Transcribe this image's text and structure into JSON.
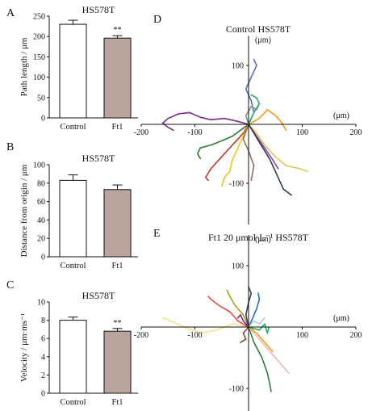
{
  "chart_data": [
    {
      "panel": "A",
      "type": "bar",
      "title": "HS578T",
      "ylabel": "Path length / μm",
      "ylim": [
        0,
        250
      ],
      "yticks": [
        0,
        50,
        100,
        150,
        200,
        250
      ],
      "categories": [
        "Control",
        "Ft1"
      ],
      "values": [
        230,
        196
      ],
      "errors": [
        10,
        6
      ],
      "bar_colors": [
        "#ffffff",
        "#b9a59b"
      ],
      "annotations": [
        "",
        "**"
      ]
    },
    {
      "panel": "B",
      "type": "bar",
      "title": "HS578T",
      "ylabel": "Distance from origin / μm",
      "ylim": [
        0,
        100
      ],
      "yticks": [
        0,
        20,
        40,
        60,
        80,
        100
      ],
      "categories": [
        "Control",
        "Ft1"
      ],
      "values": [
        83,
        73
      ],
      "errors": [
        6,
        5
      ],
      "bar_colors": [
        "#ffffff",
        "#b9a59b"
      ],
      "annotations": [
        "",
        ""
      ]
    },
    {
      "panel": "C",
      "type": "bar",
      "title": "HS578T",
      "ylabel": "Velocity / μm·ms⁻¹",
      "ylim": [
        0,
        10
      ],
      "yticks": [
        0,
        2,
        4,
        6,
        8,
        10
      ],
      "categories": [
        "Control",
        "Ft1"
      ],
      "values": [
        8.0,
        6.8
      ],
      "errors": [
        0.35,
        0.3
      ],
      "bar_colors": [
        "#ffffff",
        "#b9a59b"
      ],
      "annotations": [
        "",
        "**"
      ]
    },
    {
      "panel": "D",
      "type": "line",
      "title": "Control HS578T",
      "unit_label": "(μm)",
      "xlim": [
        -200,
        200
      ],
      "ylim": [
        -170,
        150
      ],
      "xticks": [
        -200,
        -100,
        100,
        200
      ],
      "yticks": [
        100,
        -100
      ],
      "series": [
        {
          "color": "#7b2a8a",
          "x": [
            0,
            -20,
            -45,
            -70,
            -90,
            -110,
            -130,
            -150,
            -160,
            -150,
            -140
          ],
          "y": [
            0,
            5,
            10,
            8,
            12,
            20,
            18,
            10,
            2,
            -5,
            -10
          ]
        },
        {
          "color": "#c0392b",
          "x": [
            0,
            -10,
            -25,
            -40,
            -55,
            -70,
            -80,
            -75
          ],
          "y": [
            0,
            -15,
            -30,
            -45,
            -60,
            -75,
            -90,
            -95
          ]
        },
        {
          "color": "#2e7d32",
          "x": [
            0,
            -15,
            -30,
            -50,
            -70,
            -90,
            -95,
            -90
          ],
          "y": [
            0,
            -10,
            -20,
            -28,
            -35,
            -40,
            -50,
            -58
          ]
        },
        {
          "color": "#f1c40f",
          "x": [
            0,
            -10,
            -20,
            -30,
            -35,
            -45,
            -50
          ],
          "y": [
            0,
            -20,
            -40,
            -60,
            -80,
            -90,
            -105
          ]
        },
        {
          "color": "#e2c84a",
          "x": [
            0,
            15,
            30,
            50,
            70,
            95,
            110
          ],
          "y": [
            0,
            -15,
            -35,
            -55,
            -70,
            -75,
            -80
          ]
        },
        {
          "color": "#4a6fd6",
          "x": [
            0,
            10,
            5,
            -5,
            5,
            15,
            10
          ],
          "y": [
            0,
            20,
            40,
            60,
            80,
            100,
            110
          ]
        },
        {
          "color": "#8e44ad",
          "x": [
            0,
            15,
            30,
            45,
            55
          ],
          "y": [
            0,
            -20,
            -40,
            -60,
            -75
          ]
        },
        {
          "color": "#f39c12",
          "x": [
            0,
            20,
            35,
            50,
            60,
            70
          ],
          "y": [
            0,
            10,
            25,
            15,
            5,
            -10
          ]
        },
        {
          "color": "#7f8c8d",
          "x": [
            0,
            -5,
            5,
            15,
            20
          ],
          "y": [
            0,
            15,
            30,
            25,
            35
          ]
        },
        {
          "color": "#27ae60",
          "x": [
            0,
            10,
            20,
            15,
            5
          ],
          "y": [
            0,
            20,
            35,
            45,
            50
          ]
        },
        {
          "color": "#8d6e63",
          "x": [
            0,
            -10,
            0,
            10,
            5
          ],
          "y": [
            0,
            -25,
            -45,
            -70,
            -95
          ]
        },
        {
          "color": "#2c3e50",
          "x": [
            0,
            20,
            40,
            55,
            65,
            80
          ],
          "y": [
            0,
            -30,
            -60,
            -90,
            -110,
            -120
          ]
        }
      ]
    },
    {
      "panel": "E",
      "type": "line",
      "title": "Ft1 20 μmol·L⁻¹ HS578T",
      "unit_label": "(μm)",
      "xlim": [
        -200,
        200
      ],
      "ylim": [
        -170,
        150
      ],
      "xticks": [
        -200,
        -100,
        100,
        200
      ],
      "yticks": [
        100,
        -100
      ],
      "series": [
        {
          "color": "#f7e38d",
          "x": [
            0,
            -30,
            -60,
            -90,
            -120,
            -145,
            -160
          ],
          "y": [
            0,
            5,
            -5,
            -10,
            0,
            10,
            15
          ]
        },
        {
          "color": "#e74c3c",
          "x": [
            0,
            -20,
            -35,
            -55,
            -70,
            -75
          ],
          "y": [
            0,
            10,
            25,
            35,
            45,
            50
          ]
        },
        {
          "color": "#a8a11b",
          "x": [
            0,
            -10,
            -25,
            -35,
            -40
          ],
          "y": [
            0,
            20,
            35,
            50,
            60
          ]
        },
        {
          "color": "#2e7d32",
          "x": [
            0,
            10,
            25,
            35,
            40,
            42
          ],
          "y": [
            0,
            -25,
            -50,
            -75,
            -95,
            -105
          ]
        },
        {
          "color": "#2c3e6b",
          "x": [
            0,
            -5,
            0,
            5,
            0
          ],
          "y": [
            0,
            20,
            40,
            55,
            65
          ]
        },
        {
          "color": "#1f6fb2",
          "x": [
            0,
            8,
            15,
            20,
            18
          ],
          "y": [
            0,
            15,
            30,
            45,
            55
          ]
        },
        {
          "color": "#f4b6b6",
          "x": [
            0,
            15,
            30,
            45,
            60,
            75
          ],
          "y": [
            0,
            -15,
            -30,
            -45,
            -60,
            -75
          ]
        },
        {
          "color": "#f39c12",
          "x": [
            0,
            15,
            30,
            40,
            45
          ],
          "y": [
            0,
            -10,
            -25,
            -35,
            -40
          ]
        },
        {
          "color": "#b7c9e2",
          "x": [
            0,
            10,
            20,
            30
          ],
          "y": [
            0,
            10,
            5,
            15
          ]
        },
        {
          "color": "#7b2a8a",
          "x": [
            0,
            -10,
            -15,
            -20
          ],
          "y": [
            0,
            10,
            20,
            15
          ]
        },
        {
          "color": "#27ae60",
          "x": [
            0,
            20,
            30,
            35,
            38
          ],
          "y": [
            0,
            -5,
            5,
            -10,
            0
          ]
        },
        {
          "color": "#6d4c41",
          "x": [
            0,
            -10,
            -5,
            -15
          ],
          "y": [
            0,
            -10,
            -20,
            -25
          ]
        }
      ]
    }
  ]
}
